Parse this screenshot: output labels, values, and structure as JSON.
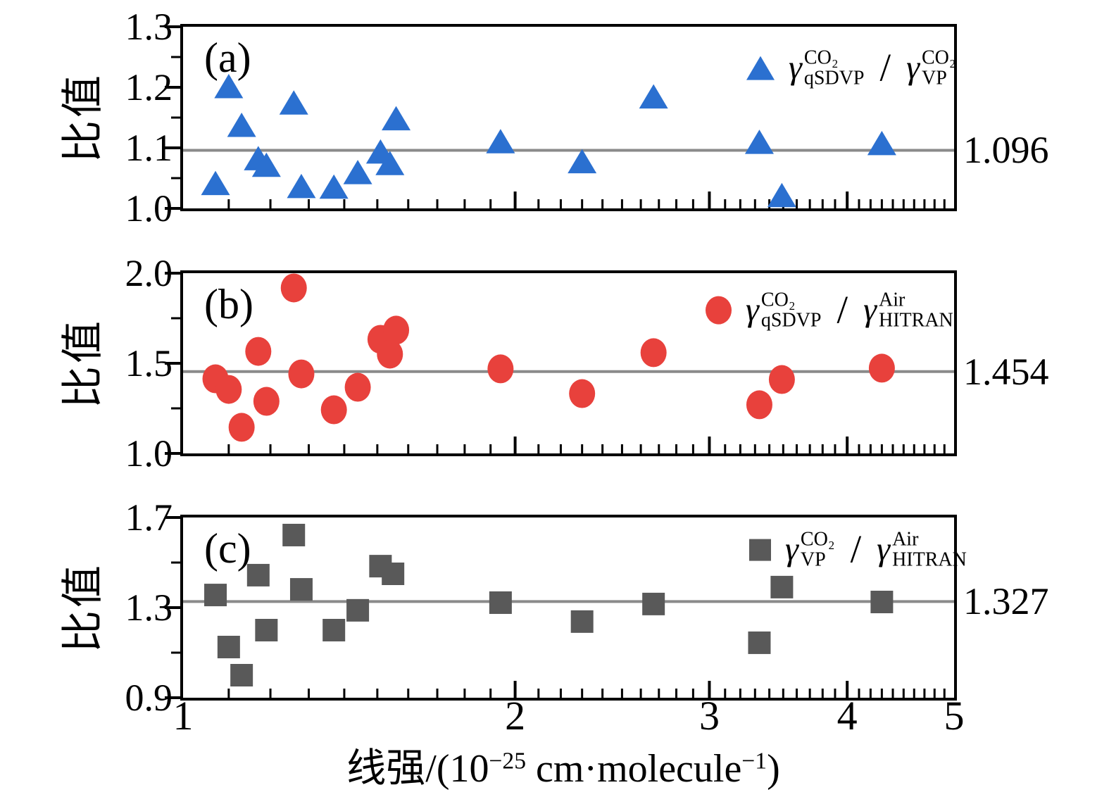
{
  "figure": {
    "background": "#ffffff",
    "y_axis_label": "比值",
    "x_axis_label_segments": [
      {
        "t": "线强/(10"
      },
      {
        "t": "−25",
        "sup": true
      },
      {
        "t": " cm·molecule"
      },
      {
        "t": "−1",
        "sup": true
      },
      {
        "t": ")"
      }
    ],
    "x_tick_labels": [
      "1",
      "2",
      "3",
      "4",
      "5"
    ]
  },
  "chart_data": {
    "type": "scatter",
    "x_scale": "log",
    "x_range": [
      1,
      5
    ],
    "xlabel": "线强/(10^−25 cm·molecule^−1)",
    "ylabel": "比值",
    "grid": false,
    "x_ticks_major": [
      1,
      2,
      3,
      4,
      5
    ],
    "x_ticks_minor_step": 0.1,
    "ref_line_color": "#8a8a8a",
    "axis_color": "#000000",
    "panels": [
      {
        "id": "a",
        "letter": "(a)",
        "marker": "triangle",
        "color": "#2b70d0",
        "ylim": [
          1.0,
          1.3
        ],
        "yticks_major": [
          1.0,
          1.1,
          1.2,
          1.3
        ],
        "ytick_labels": [
          "1.0",
          "1.1",
          "1.2",
          "1.3"
        ],
        "yticks_minor": [
          1.05,
          1.15,
          1.25
        ],
        "ref_value": 1.096,
        "ref_label": "1.096",
        "legend": {
          "num": {
            "base": "γ",
            "sup": "CO₂",
            "sub": "qSDVP"
          },
          "slash": "/",
          "den": {
            "base": "γ",
            "sup": "CO₂",
            "sub": "VP"
          }
        },
        "points": [
          [
            1.07,
            1.04
          ],
          [
            1.1,
            1.2
          ],
          [
            1.13,
            1.136
          ],
          [
            1.17,
            1.081
          ],
          [
            1.19,
            1.07
          ],
          [
            1.26,
            1.173
          ],
          [
            1.28,
            1.035
          ],
          [
            1.37,
            1.034
          ],
          [
            1.44,
            1.058
          ],
          [
            1.51,
            1.092
          ],
          [
            1.54,
            1.073
          ],
          [
            1.56,
            1.147
          ],
          [
            1.94,
            1.109
          ],
          [
            2.3,
            1.076
          ],
          [
            2.67,
            1.183
          ],
          [
            3.33,
            1.108
          ],
          [
            3.49,
            1.02
          ],
          [
            4.3,
            1.106
          ]
        ]
      },
      {
        "id": "b",
        "letter": "(b)",
        "marker": "circle",
        "color": "#e8413c",
        "ylim": [
          1.0,
          2.0
        ],
        "yticks_major": [
          1.0,
          1.5,
          2.0
        ],
        "ytick_labels": [
          "1.0",
          "1.5",
          "2.0"
        ],
        "yticks_minor": [
          1.25,
          1.75
        ],
        "ref_value": 1.454,
        "ref_label": "1.454",
        "legend": {
          "num": {
            "base": "γ",
            "sup": "CO₂",
            "sub": "qSDVP"
          },
          "slash": "/",
          "den": {
            "base": "γ",
            "sup": "Air",
            "sub": "HITRAN"
          }
        },
        "points": [
          [
            1.07,
            1.414
          ],
          [
            1.1,
            1.355
          ],
          [
            1.13,
            1.145
          ],
          [
            1.17,
            1.566
          ],
          [
            1.19,
            1.289
          ],
          [
            1.26,
            1.918
          ],
          [
            1.28,
            1.441
          ],
          [
            1.37,
            1.242
          ],
          [
            1.44,
            1.367
          ],
          [
            1.51,
            1.633
          ],
          [
            1.54,
            1.551
          ],
          [
            1.56,
            1.684
          ],
          [
            1.94,
            1.469
          ],
          [
            2.3,
            1.332
          ],
          [
            2.67,
            1.559
          ],
          [
            3.33,
            1.27
          ],
          [
            3.49,
            1.41
          ],
          [
            4.3,
            1.473
          ]
        ]
      },
      {
        "id": "c",
        "letter": "(c)",
        "marker": "square",
        "color": "#595959",
        "ylim": [
          0.9,
          1.7
        ],
        "yticks_major": [
          0.9,
          1.3,
          1.7
        ],
        "ytick_labels": [
          "0.9",
          "1.3",
          "1.7"
        ],
        "yticks_minor": [
          1.1,
          1.5
        ],
        "ref_value": 1.327,
        "ref_label": "1.327",
        "legend": {
          "num": {
            "base": "γ",
            "sup": "CO₂",
            "sub": "VP"
          },
          "slash": "/",
          "den": {
            "base": "γ",
            "sup": "Air",
            "sub": "HITRAN"
          }
        },
        "points": [
          [
            1.07,
            1.356
          ],
          [
            1.1,
            1.125
          ],
          [
            1.13,
            1.0
          ],
          [
            1.17,
            1.444
          ],
          [
            1.19,
            1.2
          ],
          [
            1.26,
            1.622
          ],
          [
            1.28,
            1.381
          ],
          [
            1.37,
            1.2
          ],
          [
            1.44,
            1.288
          ],
          [
            1.51,
            1.484
          ],
          [
            1.55,
            1.45
          ],
          [
            1.94,
            1.322
          ],
          [
            2.3,
            1.238
          ],
          [
            2.67,
            1.316
          ],
          [
            3.33,
            1.144
          ],
          [
            3.49,
            1.391
          ],
          [
            4.3,
            1.325
          ]
        ]
      }
    ]
  }
}
